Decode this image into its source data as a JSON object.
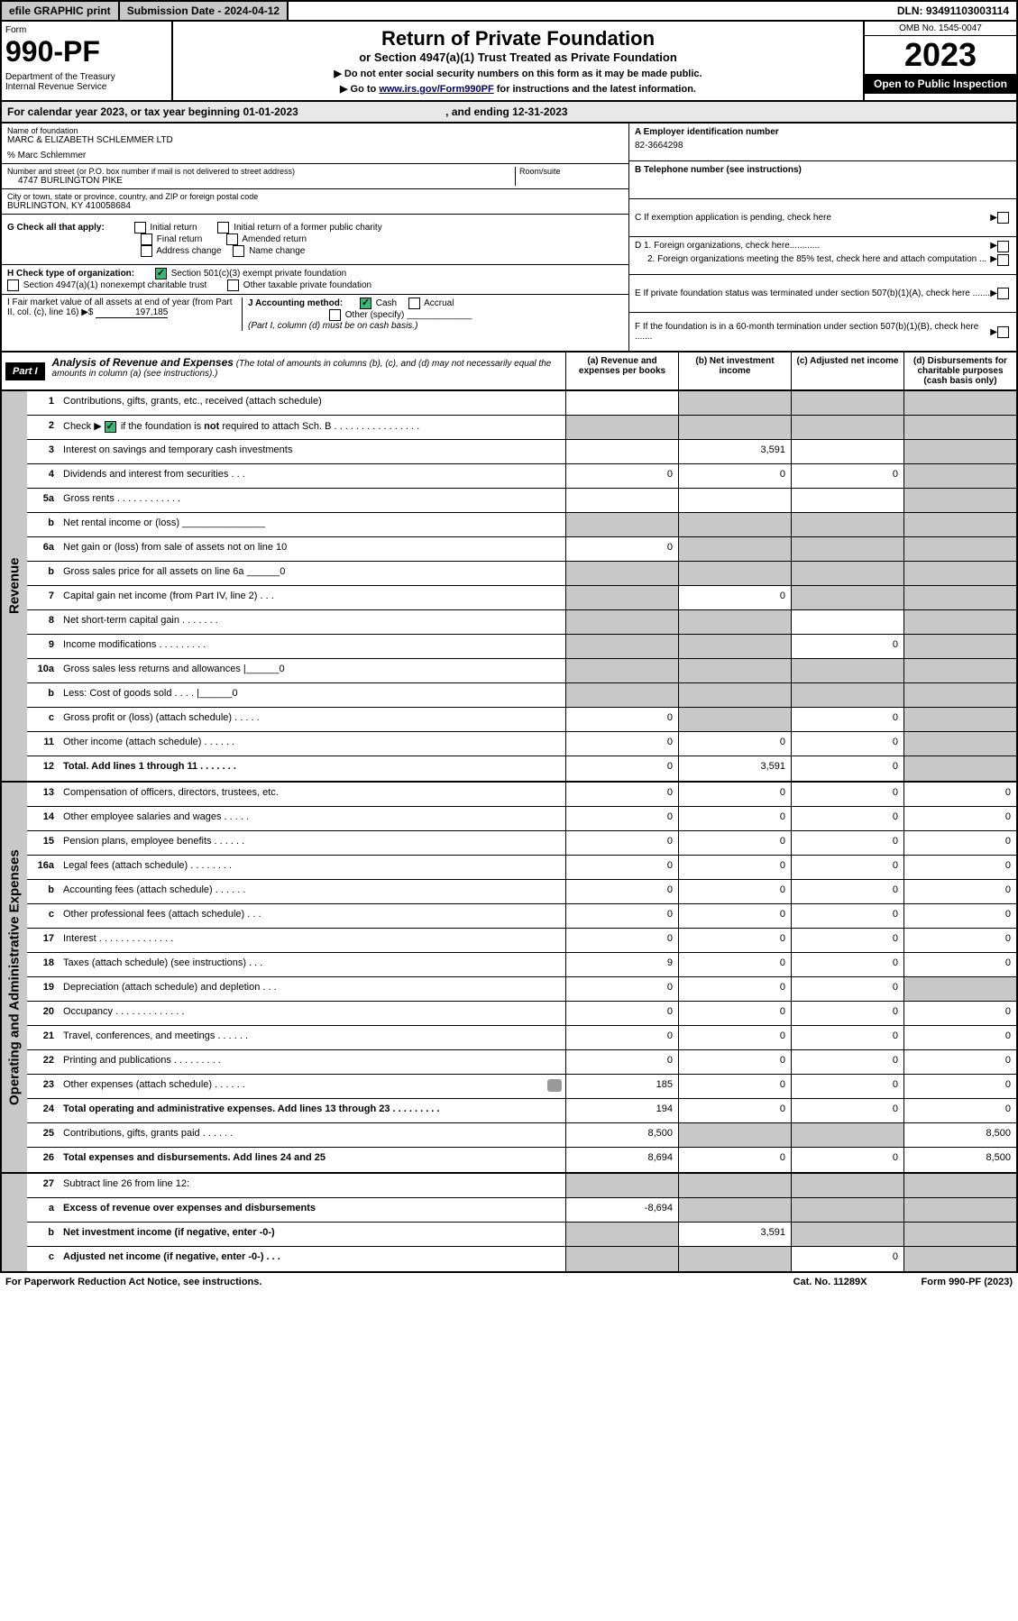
{
  "topbar": {
    "efile": "efile GRAPHIC print",
    "submission": "Submission Date - 2024-04-12",
    "dln": "DLN: 93491103003114"
  },
  "header": {
    "form_label": "Form",
    "form_no": "990-PF",
    "dept": "Department of the Treasury\nInternal Revenue Service",
    "title": "Return of Private Foundation",
    "subtitle": "or Section 4947(a)(1) Trust Treated as Private Foundation",
    "note1": "▶ Do not enter social security numbers on this form as it may be made public.",
    "note2_pre": "▶ Go to ",
    "note2_link": "www.irs.gov/Form990PF",
    "note2_post": " for instructions and the latest information.",
    "omb": "OMB No. 1545-0047",
    "year": "2023",
    "open": "Open to Public Inspection"
  },
  "calendar": {
    "text_a": "For calendar year 2023, or tax year beginning 01-01-2023",
    "text_b": ", and ending 12-31-2023"
  },
  "entity": {
    "name_label": "Name of foundation",
    "name": "MARC & ELIZABETH SCHLEMMER LTD",
    "care_of": "% Marc Schlemmer",
    "addr_label": "Number and street (or P.O. box number if mail is not delivered to street address)",
    "addr": "4747 BURLINGTON PIKE",
    "room_label": "Room/suite",
    "city_label": "City or town, state or province, country, and ZIP or foreign postal code",
    "city": "BURLINGTON, KY  410058684",
    "A_label": "A Employer identification number",
    "A_val": "82-3664298",
    "B_label": "B Telephone number (see instructions)",
    "C_label": "C If exemption application is pending, check here",
    "D1": "D 1. Foreign organizations, check here............",
    "D2": "2. Foreign organizations meeting the 85% test, check here and attach computation ...",
    "E": "E  If private foundation status was terminated under section 507(b)(1)(A), check here .......",
    "F": "F  If the foundation is in a 60-month termination under section 507(b)(1)(B), check here .......",
    "G": "G Check all that apply:",
    "G_opts": [
      "Initial return",
      "Initial return of a former public charity",
      "Final return",
      "Amended return",
      "Address change",
      "Name change"
    ],
    "H": "H Check type of organization:",
    "H1": "Section 501(c)(3) exempt private foundation",
    "H2": "Section 4947(a)(1) nonexempt charitable trust",
    "H3": "Other taxable private foundation",
    "I": "I Fair market value of all assets at end of year (from Part II, col. (c), line 16) ▶$",
    "I_val": "197,185",
    "J": "J Accounting method:",
    "J1": "Cash",
    "J2": "Accrual",
    "J3": "Other (specify)",
    "J_note": "(Part I, column (d) must be on cash basis.)"
  },
  "part1": {
    "label": "Part I",
    "title": "Analysis of Revenue and Expenses",
    "note": "(The total of amounts in columns (b), (c), and (d) may not necessarily equal the amounts in column (a) (see instructions).)",
    "cols": {
      "a": "(a) Revenue and expenses per books",
      "b": "(b) Net investment income",
      "c": "(c) Adjusted net income",
      "d": "(d) Disbursements for charitable purposes (cash basis only)"
    }
  },
  "sections": {
    "revenue": "Revenue",
    "expenses": "Operating and Administrative Expenses"
  },
  "rows": [
    {
      "sec": "r",
      "no": "1",
      "txt": "Contributions, gifts, grants, etc., received (attach schedule)",
      "a": "",
      "b": "g",
      "c": "g",
      "d": "g"
    },
    {
      "sec": "r",
      "no": "2",
      "txt": "Check ▶ ☑ if the foundation is not required to attach Sch. B  .  .  .  .  .  .  .  .  .  .  .  .  .  .  .  .",
      "cb": true,
      "a": "g",
      "b": "g",
      "c": "g",
      "d": "g"
    },
    {
      "sec": "r",
      "no": "3",
      "txt": "Interest on savings and temporary cash investments",
      "a": "",
      "b": "3,591",
      "c": "",
      "d": "g"
    },
    {
      "sec": "r",
      "no": "4",
      "txt": "Dividends and interest from securities  .  .  .",
      "a": "0",
      "b": "0",
      "c": "0",
      "d": "g"
    },
    {
      "sec": "r",
      "no": "5a",
      "txt": "Gross rents  .  .  .  .  .  .  .  .  .  .  .  .",
      "a": "",
      "b": "",
      "c": "",
      "d": "g"
    },
    {
      "sec": "r",
      "no": "b",
      "txt": "Net rental income or (loss)  _______________",
      "a": "g",
      "b": "g",
      "c": "g",
      "d": "g"
    },
    {
      "sec": "r",
      "no": "6a",
      "txt": "Net gain or (loss) from sale of assets not on line 10",
      "a": "0",
      "b": "g",
      "c": "g",
      "d": "g"
    },
    {
      "sec": "r",
      "no": "b",
      "txt": "Gross sales price for all assets on line 6a ______0",
      "a": "g",
      "b": "g",
      "c": "g",
      "d": "g"
    },
    {
      "sec": "r",
      "no": "7",
      "txt": "Capital gain net income (from Part IV, line 2)  .  .  .",
      "a": "g",
      "b": "0",
      "c": "g",
      "d": "g"
    },
    {
      "sec": "r",
      "no": "8",
      "txt": "Net short-term capital gain  .  .  .  .  .  .  .",
      "a": "g",
      "b": "g",
      "c": "",
      "d": "g"
    },
    {
      "sec": "r",
      "no": "9",
      "txt": "Income modifications  .  .  .  .  .  .  .  .  .",
      "a": "g",
      "b": "g",
      "c": "0",
      "d": "g"
    },
    {
      "sec": "r",
      "no": "10a",
      "txt": "Gross sales less returns and allowances  |______0",
      "a": "g",
      "b": "g",
      "c": "g",
      "d": "g"
    },
    {
      "sec": "r",
      "no": "b",
      "txt": "Less: Cost of goods sold   .  .  .  .   |______0",
      "a": "g",
      "b": "g",
      "c": "g",
      "d": "g"
    },
    {
      "sec": "r",
      "no": "c",
      "txt": "Gross profit or (loss) (attach schedule)  .  .  .  .  .",
      "a": "0",
      "b": "g",
      "c": "0",
      "d": "g"
    },
    {
      "sec": "r",
      "no": "11",
      "txt": "Other income (attach schedule)  .  .  .  .  .  .",
      "a": "0",
      "b": "0",
      "c": "0",
      "d": "g"
    },
    {
      "sec": "r",
      "no": "12",
      "txt": "Total. Add lines 1 through 11  .  .  .  .  .  .  .",
      "bold": true,
      "a": "0",
      "b": "3,591",
      "c": "0",
      "d": "g"
    },
    {
      "sec": "e",
      "no": "13",
      "txt": "Compensation of officers, directors, trustees, etc.",
      "a": "0",
      "b": "0",
      "c": "0",
      "d": "0"
    },
    {
      "sec": "e",
      "no": "14",
      "txt": "Other employee salaries and wages  .  .  .  .  .",
      "a": "0",
      "b": "0",
      "c": "0",
      "d": "0"
    },
    {
      "sec": "e",
      "no": "15",
      "txt": "Pension plans, employee benefits  .  .  .  .  .  .",
      "a": "0",
      "b": "0",
      "c": "0",
      "d": "0"
    },
    {
      "sec": "e",
      "no": "16a",
      "txt": "Legal fees (attach schedule)  .  .  .  .  .  .  .  .",
      "a": "0",
      "b": "0",
      "c": "0",
      "d": "0"
    },
    {
      "sec": "e",
      "no": "b",
      "txt": "Accounting fees (attach schedule)  .  .  .  .  .  .",
      "a": "0",
      "b": "0",
      "c": "0",
      "d": "0"
    },
    {
      "sec": "e",
      "no": "c",
      "txt": "Other professional fees (attach schedule)   .  .  .",
      "a": "0",
      "b": "0",
      "c": "0",
      "d": "0"
    },
    {
      "sec": "e",
      "no": "17",
      "txt": "Interest  .  .  .  .  .  .  .  .  .  .  .  .  .  .",
      "a": "0",
      "b": "0",
      "c": "0",
      "d": "0"
    },
    {
      "sec": "e",
      "no": "18",
      "txt": "Taxes (attach schedule) (see instructions)   .  .  .",
      "a": "9",
      "b": "0",
      "c": "0",
      "d": "0"
    },
    {
      "sec": "e",
      "no": "19",
      "txt": "Depreciation (attach schedule) and depletion   .  .  .",
      "a": "0",
      "b": "0",
      "c": "0",
      "d": "g"
    },
    {
      "sec": "e",
      "no": "20",
      "txt": "Occupancy  .  .  .  .  .  .  .  .  .  .  .  .  .",
      "a": "0",
      "b": "0",
      "c": "0",
      "d": "0"
    },
    {
      "sec": "e",
      "no": "21",
      "txt": "Travel, conferences, and meetings  .  .  .  .  .  .",
      "a": "0",
      "b": "0",
      "c": "0",
      "d": "0"
    },
    {
      "sec": "e",
      "no": "22",
      "txt": "Printing and publications  .  .  .  .  .  .  .  .  .",
      "a": "0",
      "b": "0",
      "c": "0",
      "d": "0"
    },
    {
      "sec": "e",
      "no": "23",
      "txt": "Other expenses (attach schedule)  .  .  .  .  .  .",
      "icon": true,
      "a": "185",
      "b": "0",
      "c": "0",
      "d": "0"
    },
    {
      "sec": "e",
      "no": "24",
      "txt": "Total operating and administrative expenses. Add lines 13 through 23  .  .  .  .  .  .  .  .  .",
      "bold": true,
      "a": "194",
      "b": "0",
      "c": "0",
      "d": "0"
    },
    {
      "sec": "e",
      "no": "25",
      "txt": "Contributions, gifts, grants paid   .  .  .  .  .  .",
      "a": "8,500",
      "b": "g",
      "c": "g",
      "d": "8,500"
    },
    {
      "sec": "e",
      "no": "26",
      "txt": "Total expenses and disbursements. Add lines 24 and 25",
      "bold": true,
      "a": "8,694",
      "b": "0",
      "c": "0",
      "d": "8,500"
    },
    {
      "sec": "x",
      "no": "27",
      "txt": "Subtract line 26 from line 12:",
      "a": "g",
      "b": "g",
      "c": "g",
      "d": "g"
    },
    {
      "sec": "x",
      "no": "a",
      "txt": "Excess of revenue over expenses and disbursements",
      "bold": true,
      "a": "-8,694",
      "b": "g",
      "c": "g",
      "d": "g"
    },
    {
      "sec": "x",
      "no": "b",
      "txt": "Net investment income (if negative, enter -0-)",
      "bold": true,
      "a": "g",
      "b": "3,591",
      "c": "g",
      "d": "g"
    },
    {
      "sec": "x",
      "no": "c",
      "txt": "Adjusted net income (if negative, enter -0-)  .  .  .",
      "bold": true,
      "a": "g",
      "b": "g",
      "c": "0",
      "d": "g"
    }
  ],
  "footer": {
    "left": "For Paperwork Reduction Act Notice, see instructions.",
    "mid": "Cat. No. 11289X",
    "right": "Form 990-PF (2023)"
  },
  "colors": {
    "grey": "#c8c8c8",
    "lightgrey": "#e8e8e8",
    "link": "#000066",
    "check_green": "#33bb77"
  }
}
